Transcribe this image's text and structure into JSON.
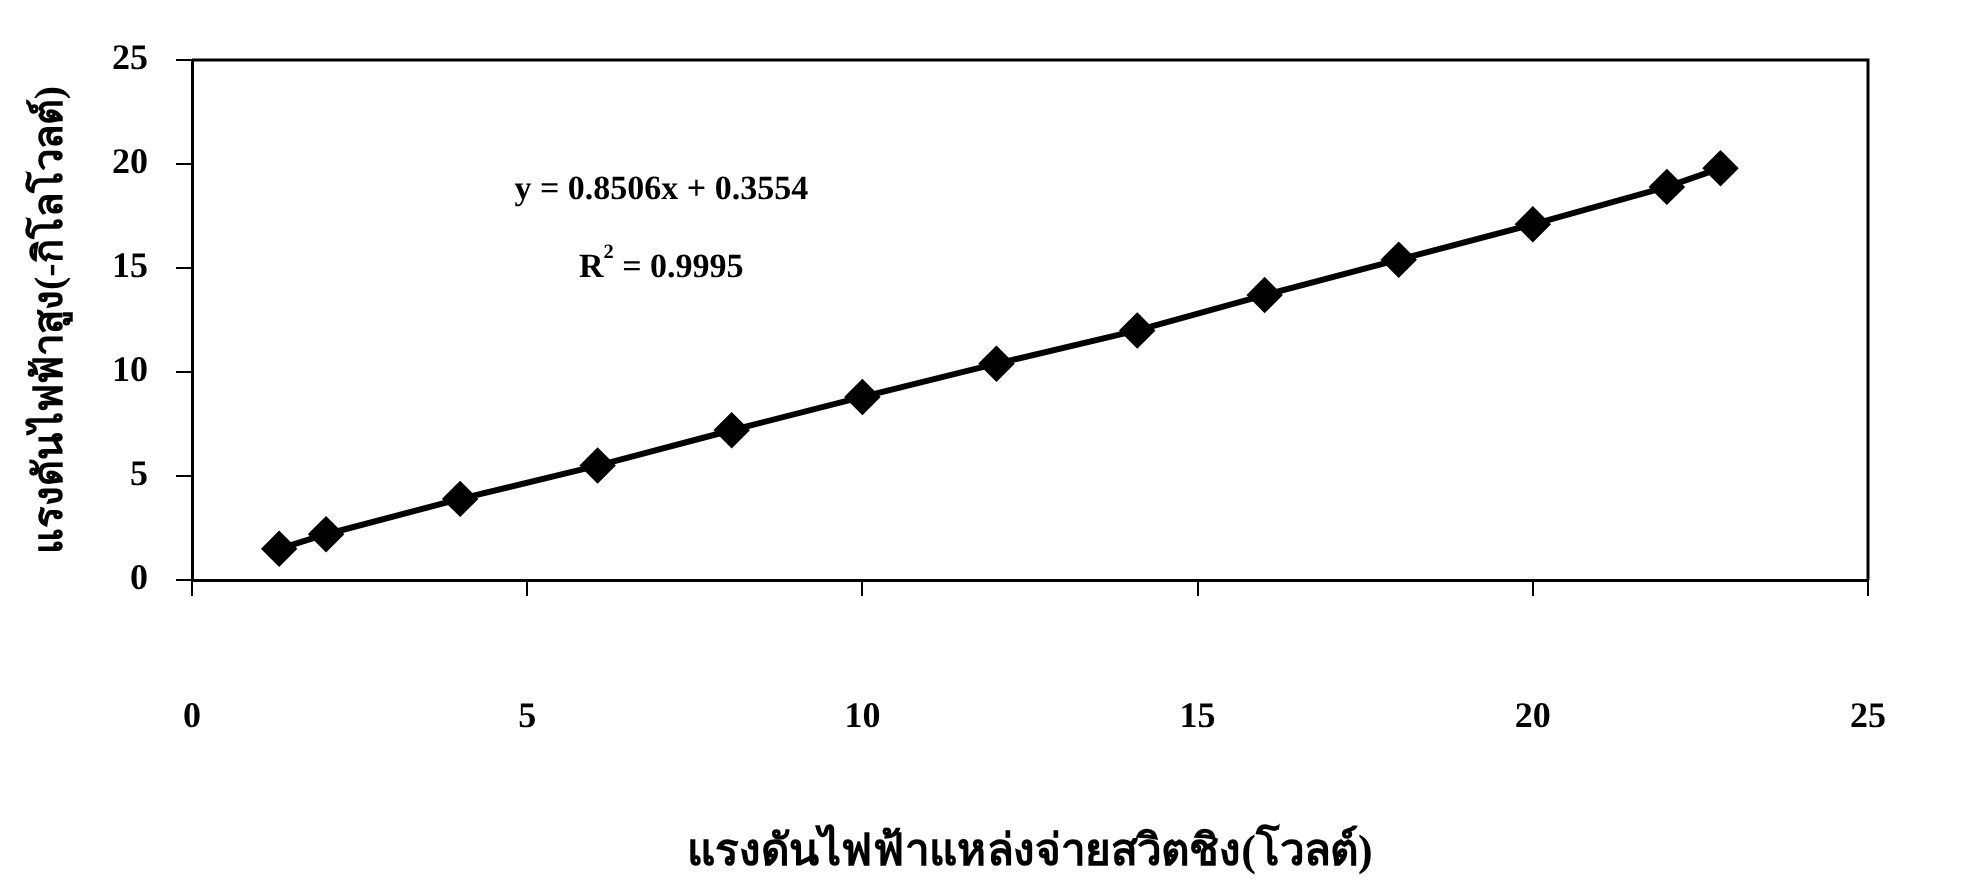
{
  "chart_data": {
    "type": "line",
    "xlabel": "แรงดันไฟฟ้าแหล่งจ่ายสวิตชิง(โวลต์)",
    "ylabel": "แรงดันไฟฟ้าสูง(-กิโลโวลต์)",
    "x": [
      1.3,
      2.0,
      4.0,
      6.05,
      8.05,
      10.0,
      12.0,
      14.1,
      16.0,
      18.0,
      20.0,
      22.0,
      22.8
    ],
    "series": [
      {
        "color": "#000000",
        "values": [
          1.5,
          2.2,
          3.9,
          5.5,
          7.2,
          8.8,
          10.4,
          12.0,
          13.7,
          15.4,
          17.1,
          18.9,
          19.8
        ]
      }
    ],
    "xlim": [
      0,
      25
    ],
    "xticks": [
      0,
      5,
      10,
      15,
      20,
      25
    ],
    "ylim": [
      0,
      25
    ],
    "yticks": [
      0,
      5,
      10,
      15,
      20,
      25
    ],
    "grid": false,
    "legend": false,
    "marker": "diamond",
    "line_style": "solid",
    "annotations": [
      "y = 0.8506x + 0.3554",
      "R$^{2}$ = 0.9995"
    ]
  }
}
